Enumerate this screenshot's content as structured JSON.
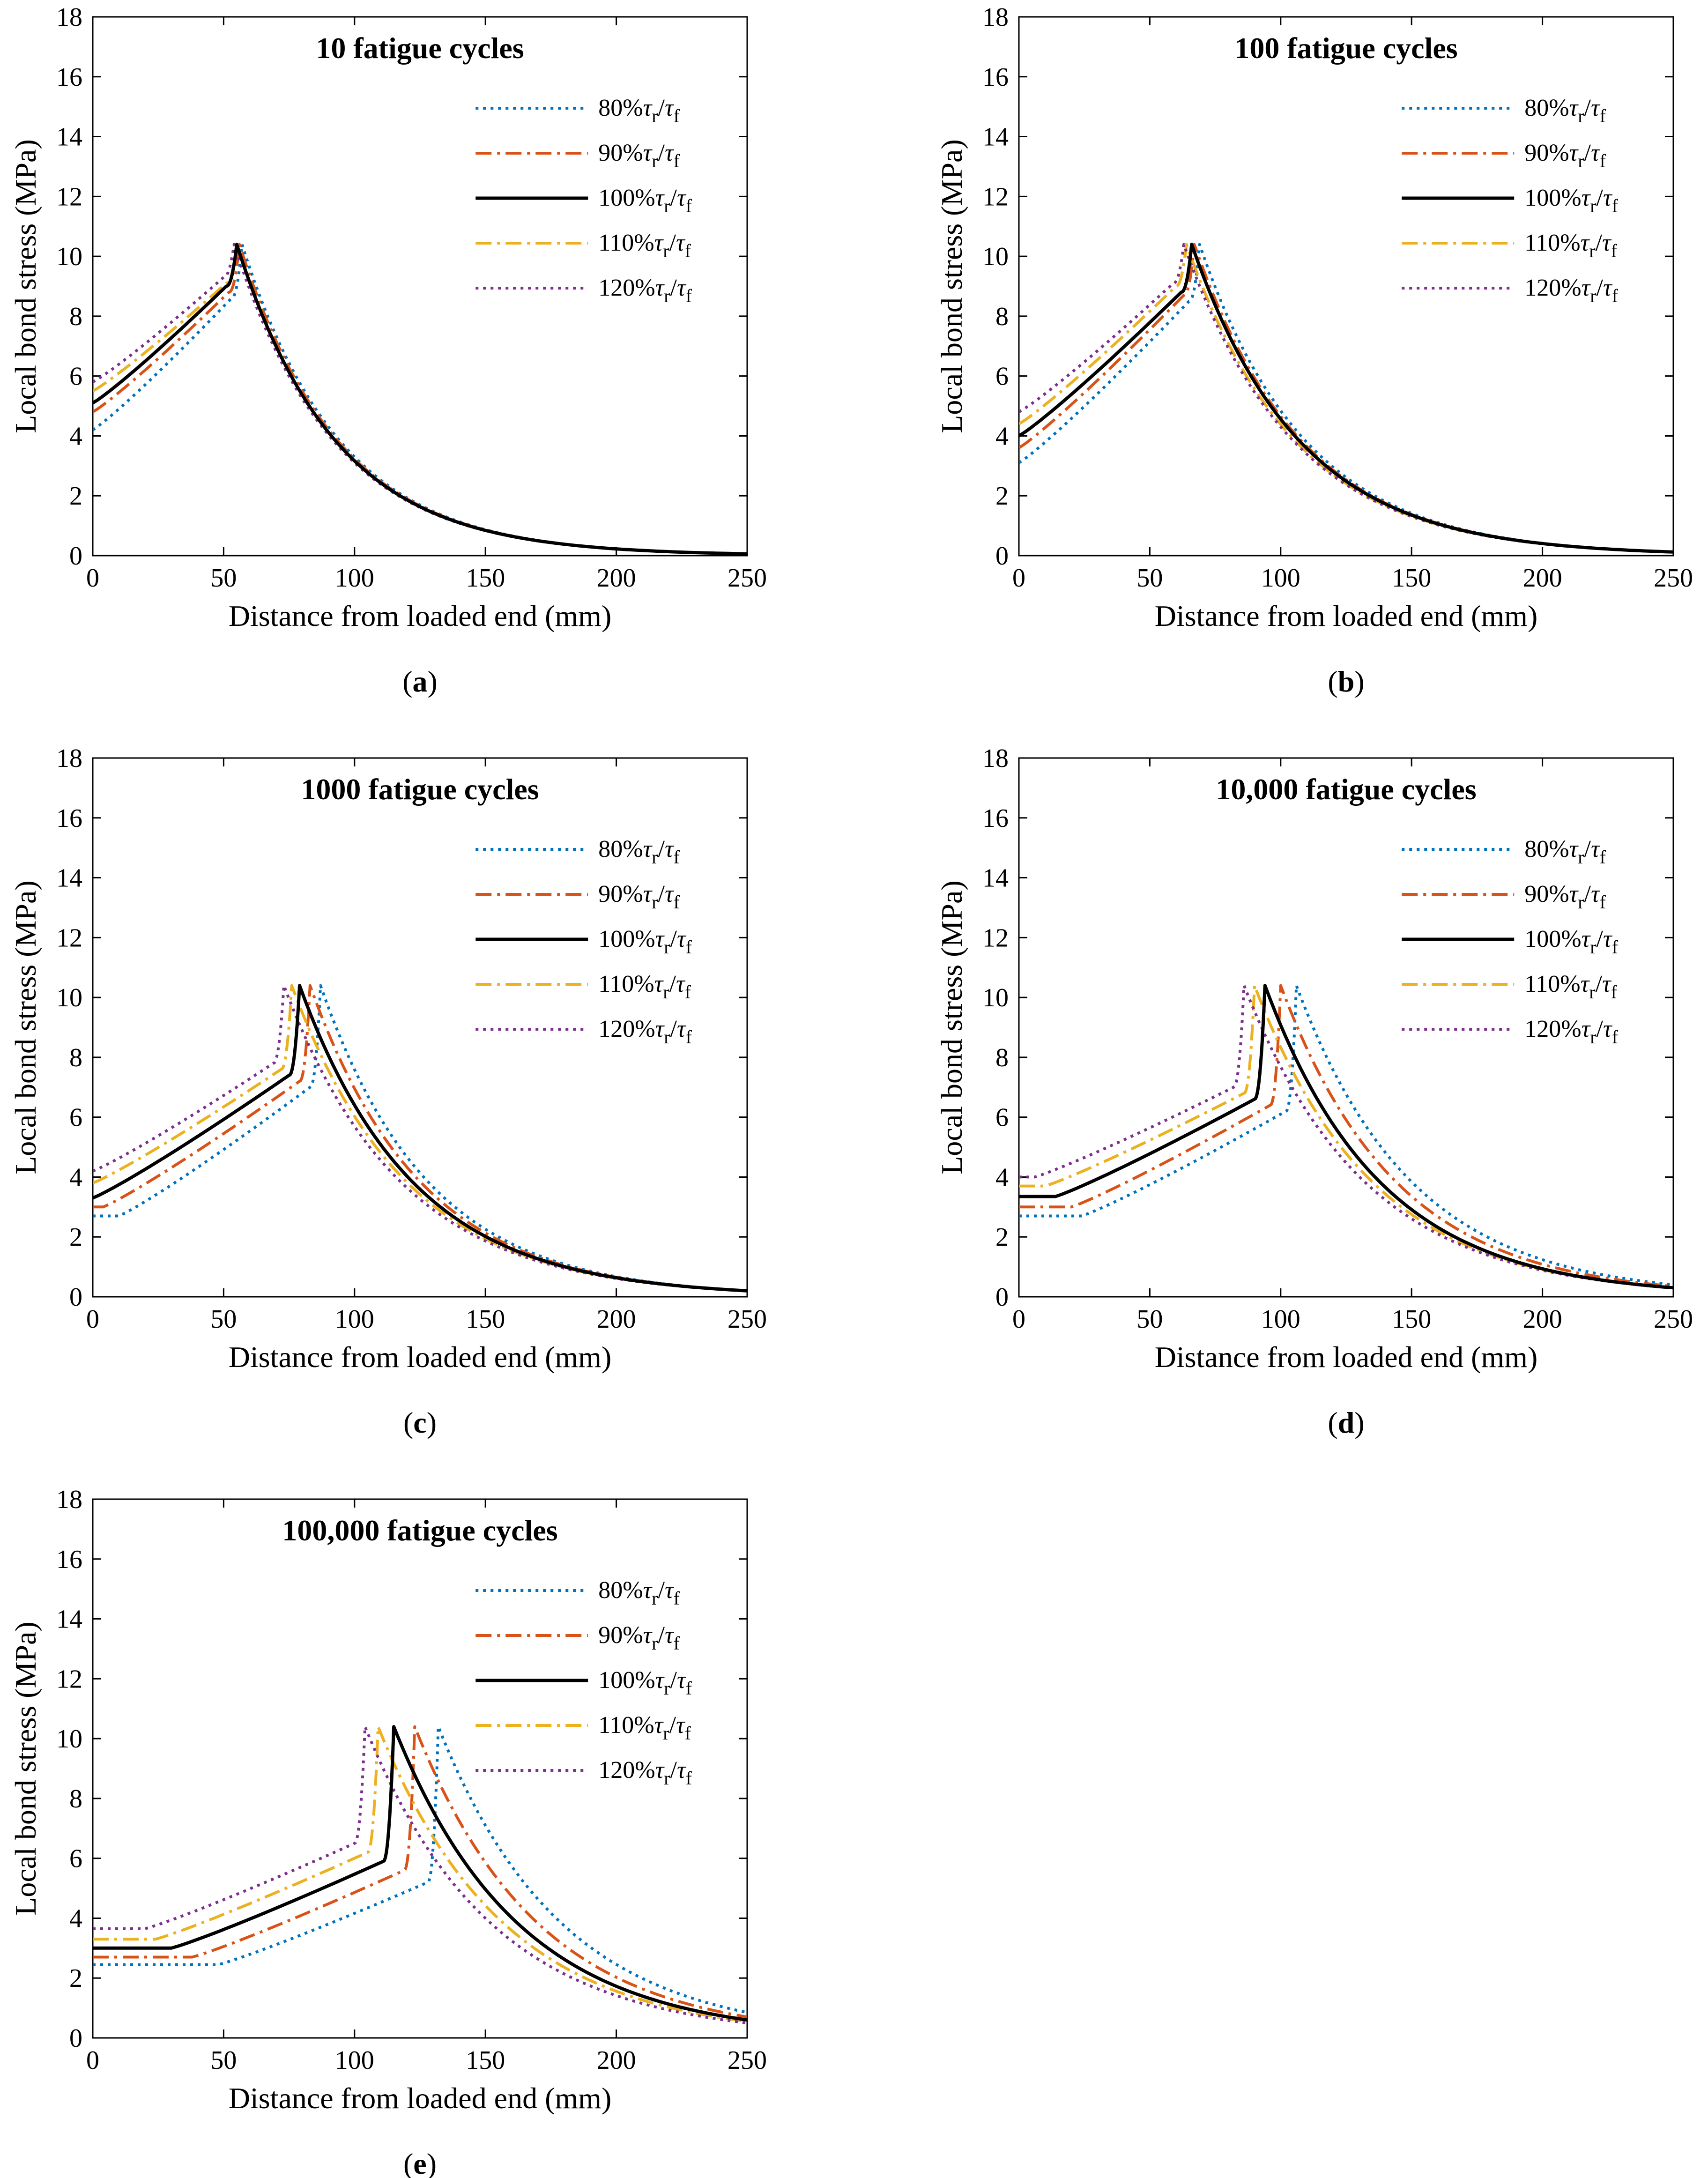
{
  "chart_data": [
    {
      "type": "line",
      "panel_label": "a",
      "title": "10 fatigue cycles",
      "xlabel": "Distance from loaded end (mm)",
      "ylabel": "Local bond stress (MPa)",
      "xlim": [
        0,
        250
      ],
      "ylim": [
        0,
        18
      ],
      "xticks": [
        "0",
        "50",
        "100",
        "150",
        "200",
        "250"
      ],
      "yticks": [
        "0",
        "2",
        "4",
        "6",
        "8",
        "10",
        "12",
        "14",
        "16",
        "18"
      ],
      "legend_position": "upper-right",
      "series": [
        {
          "name": "80%τr/τf",
          "color": "#0072BD",
          "dash": "dot",
          "peak_x": 57,
          "y0": 4.2,
          "y_pre": 8.6,
          "plateau_end": 0,
          "tail_end": 0.06
        },
        {
          "name": "90%τr/τf",
          "color": "#D95319",
          "dash": "dashdot",
          "peak_x": 56,
          "y0": 4.8,
          "y_pre": 8.8,
          "plateau_end": 0,
          "tail_end": 0.06
        },
        {
          "name": "100%τr/τf",
          "color": "#000000",
          "dash": "solid",
          "peak_x": 55,
          "y0": 5.1,
          "y_pre": 9.0,
          "plateau_end": 0,
          "tail_end": 0.06
        },
        {
          "name": "110%τr/τf",
          "color": "#EDB120",
          "dash": "dashdot",
          "peak_x": 55,
          "y0": 5.5,
          "y_pre": 9.1,
          "plateau_end": 0,
          "tail_end": 0.06
        },
        {
          "name": "120%τr/τf",
          "color": "#7E2F8E",
          "dash": "dot",
          "peak_x": 54,
          "y0": 5.8,
          "y_pre": 9.3,
          "plateau_end": 0,
          "tail_end": 0.06
        }
      ]
    },
    {
      "type": "line",
      "panel_label": "b",
      "title": "100 fatigue cycles",
      "xlabel": "Distance from loaded end (mm)",
      "ylabel": "Local bond stress (MPa)",
      "xlim": [
        0,
        250
      ],
      "ylim": [
        0,
        18
      ],
      "xticks": [
        "0",
        "50",
        "100",
        "150",
        "200",
        "250"
      ],
      "yticks": [
        "0",
        "2",
        "4",
        "6",
        "8",
        "10",
        "12",
        "14",
        "16",
        "18"
      ],
      "legend_position": "upper-right",
      "series": [
        {
          "name": "80%τr/τf",
          "color": "#0072BD",
          "dash": "dot",
          "peak_x": 69,
          "y0": 3.1,
          "y_pre": 8.5,
          "plateau_end": 0,
          "tail_end": 0.12
        },
        {
          "name": "90%τr/τf",
          "color": "#D95319",
          "dash": "dashdot",
          "peak_x": 67,
          "y0": 3.6,
          "y_pre": 8.7,
          "plateau_end": 0,
          "tail_end": 0.12
        },
        {
          "name": "100%τr/τf",
          "color": "#000000",
          "dash": "solid",
          "peak_x": 66,
          "y0": 4.0,
          "y_pre": 8.8,
          "plateau_end": 0,
          "tail_end": 0.12
        },
        {
          "name": "110%τr/τf",
          "color": "#EDB120",
          "dash": "dashdot",
          "peak_x": 64,
          "y0": 4.4,
          "y_pre": 9.0,
          "plateau_end": 0,
          "tail_end": 0.12
        },
        {
          "name": "120%τr/τf",
          "color": "#7E2F8E",
          "dash": "dot",
          "peak_x": 63,
          "y0": 4.8,
          "y_pre": 9.1,
          "plateau_end": 0,
          "tail_end": 0.12
        }
      ]
    },
    {
      "type": "line",
      "panel_label": "c",
      "title": "1000 fatigue cycles",
      "xlabel": "Distance from loaded end (mm)",
      "ylabel": "Local bond stress (MPa)",
      "xlim": [
        0,
        250
      ],
      "ylim": [
        0,
        18
      ],
      "xticks": [
        "0",
        "50",
        "100",
        "150",
        "200",
        "250"
      ],
      "yticks": [
        "0",
        "2",
        "4",
        "6",
        "8",
        "10",
        "12",
        "14",
        "16",
        "18"
      ],
      "legend_position": "upper-right",
      "series": [
        {
          "name": "80%τr/τf",
          "color": "#0072BD",
          "dash": "dot",
          "peak_x": 87,
          "y0": 2.7,
          "y_pre": 7.0,
          "plateau_end": 10,
          "tail_end": 0.2
        },
        {
          "name": "90%τr/τf",
          "color": "#D95319",
          "dash": "dashdot",
          "peak_x": 83,
          "y0": 3.0,
          "y_pre": 7.2,
          "plateau_end": 4,
          "tail_end": 0.2
        },
        {
          "name": "100%τr/τf",
          "color": "#000000",
          "dash": "solid",
          "peak_x": 79,
          "y0": 3.3,
          "y_pre": 7.4,
          "plateau_end": 0,
          "tail_end": 0.2
        },
        {
          "name": "110%τr/τf",
          "color": "#EDB120",
          "dash": "dashdot",
          "peak_x": 76,
          "y0": 3.8,
          "y_pre": 7.6,
          "plateau_end": 0,
          "tail_end": 0.2
        },
        {
          "name": "120%τr/τf",
          "color": "#7E2F8E",
          "dash": "dot",
          "peak_x": 73,
          "y0": 4.2,
          "y_pre": 7.8,
          "plateau_end": 0,
          "tail_end": 0.2
        }
      ]
    },
    {
      "type": "line",
      "panel_label": "d",
      "title": "10,000 fatigue cycles",
      "xlabel": "Distance from loaded end (mm)",
      "ylabel": "Local bond stress (MPa)",
      "xlim": [
        0,
        250
      ],
      "ylim": [
        0,
        18
      ],
      "xticks": [
        "0",
        "50",
        "100",
        "150",
        "200",
        "250"
      ],
      "yticks": [
        "0",
        "2",
        "4",
        "6",
        "8",
        "10",
        "12",
        "14",
        "16",
        "18"
      ],
      "legend_position": "upper-right",
      "series": [
        {
          "name": "80%τr/τf",
          "color": "#0072BD",
          "dash": "dot",
          "peak_x": 106,
          "y0": 2.7,
          "y_pre": 6.2,
          "plateau_end": 24,
          "tail_end": 0.4
        },
        {
          "name": "90%τr/τf",
          "color": "#D95319",
          "dash": "dashdot",
          "peak_x": 100,
          "y0": 3.0,
          "y_pre": 6.4,
          "plateau_end": 20,
          "tail_end": 0.35
        },
        {
          "name": "100%τr/τf",
          "color": "#000000",
          "dash": "solid",
          "peak_x": 94,
          "y0": 3.35,
          "y_pre": 6.6,
          "plateau_end": 14,
          "tail_end": 0.3
        },
        {
          "name": "110%τr/τf",
          "color": "#EDB120",
          "dash": "dashdot",
          "peak_x": 90,
          "y0": 3.7,
          "y_pre": 6.8,
          "plateau_end": 10,
          "tail_end": 0.3
        },
        {
          "name": "120%τr/τf",
          "color": "#7E2F8E",
          "dash": "dot",
          "peak_x": 86,
          "y0": 4.0,
          "y_pre": 7.0,
          "plateau_end": 6,
          "tail_end": 0.3
        }
      ]
    },
    {
      "type": "line",
      "panel_label": "e",
      "title": "100,000 fatigue cycles",
      "xlabel": "Distance from loaded end (mm)",
      "ylabel": "Local bond stress (MPa)",
      "xlim": [
        0,
        250
      ],
      "ylim": [
        0,
        18
      ],
      "xticks": [
        "0",
        "50",
        "100",
        "150",
        "200",
        "250"
      ],
      "yticks": [
        "0",
        "2",
        "4",
        "6",
        "8",
        "10",
        "12",
        "14",
        "16",
        "18"
      ],
      "legend_position": "upper-right",
      "series": [
        {
          "name": "80%τr/τf",
          "color": "#0072BD",
          "dash": "dot",
          "peak_x": 132,
          "y0": 2.45,
          "y_pre": 5.2,
          "plateau_end": 48,
          "tail_end": 0.85
        },
        {
          "name": "90%τr/τf",
          "color": "#D95319",
          "dash": "dashdot",
          "peak_x": 123,
          "y0": 2.7,
          "y_pre": 5.6,
          "plateau_end": 38,
          "tail_end": 0.7
        },
        {
          "name": "100%τr/τf",
          "color": "#000000",
          "dash": "solid",
          "peak_x": 115,
          "y0": 3.0,
          "y_pre": 5.9,
          "plateau_end": 30,
          "tail_end": 0.6
        },
        {
          "name": "110%τr/τf",
          "color": "#EDB120",
          "dash": "dashdot",
          "peak_x": 109,
          "y0": 3.3,
          "y_pre": 6.2,
          "plateau_end": 24,
          "tail_end": 0.55
        },
        {
          "name": "120%τr/τf",
          "color": "#7E2F8E",
          "dash": "dot",
          "peak_x": 104,
          "y0": 3.65,
          "y_pre": 6.5,
          "plateau_end": 20,
          "tail_end": 0.5
        }
      ]
    }
  ],
  "peak_value": 10.4
}
